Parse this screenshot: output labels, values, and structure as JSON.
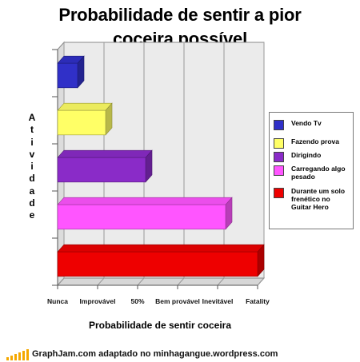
{
  "chart_data": {
    "type": "bar",
    "orientation": "horizontal",
    "title_lines": [
      "Probabilidade de sentir a pior",
      "coceira possível"
    ],
    "ylabel": "Atividade",
    "xlabel": "Probabilidade de sentir coceira",
    "x_tick_labels": [
      "Nunca",
      "Improvável",
      "50%",
      "Bem provável",
      "Inevitável",
      "Fatality"
    ],
    "xlim": [
      0,
      5
    ],
    "grid": true,
    "legend_position": "right",
    "series": [
      {
        "name": "Vendo Tv",
        "value": 0.5,
        "color": "#3030c8"
      },
      {
        "name": "Fazendo prova",
        "value": 1.2,
        "color": "#ffff66"
      },
      {
        "name": "Dirigindo",
        "value": 2.2,
        "color": "#8a2bc8"
      },
      {
        "name": "Carregando algo pesado",
        "value": 4.2,
        "color": "#ff55ff"
      },
      {
        "name": "Durante um solo frenético no Guitar Hero",
        "value": 5,
        "color": "#ee0000"
      }
    ]
  },
  "legend_lines": [
    [
      "Vendo Tv"
    ],
    [
      "Fazendo prova"
    ],
    [
      "Dirigindo"
    ],
    [
      "Carregando algo",
      "pesado"
    ],
    [
      "Durante um solo",
      "frenético no",
      "Guitar Hero"
    ]
  ],
  "footer": {
    "text": "GraphJam.com adaptado no minhagangue.wordpress.com"
  }
}
